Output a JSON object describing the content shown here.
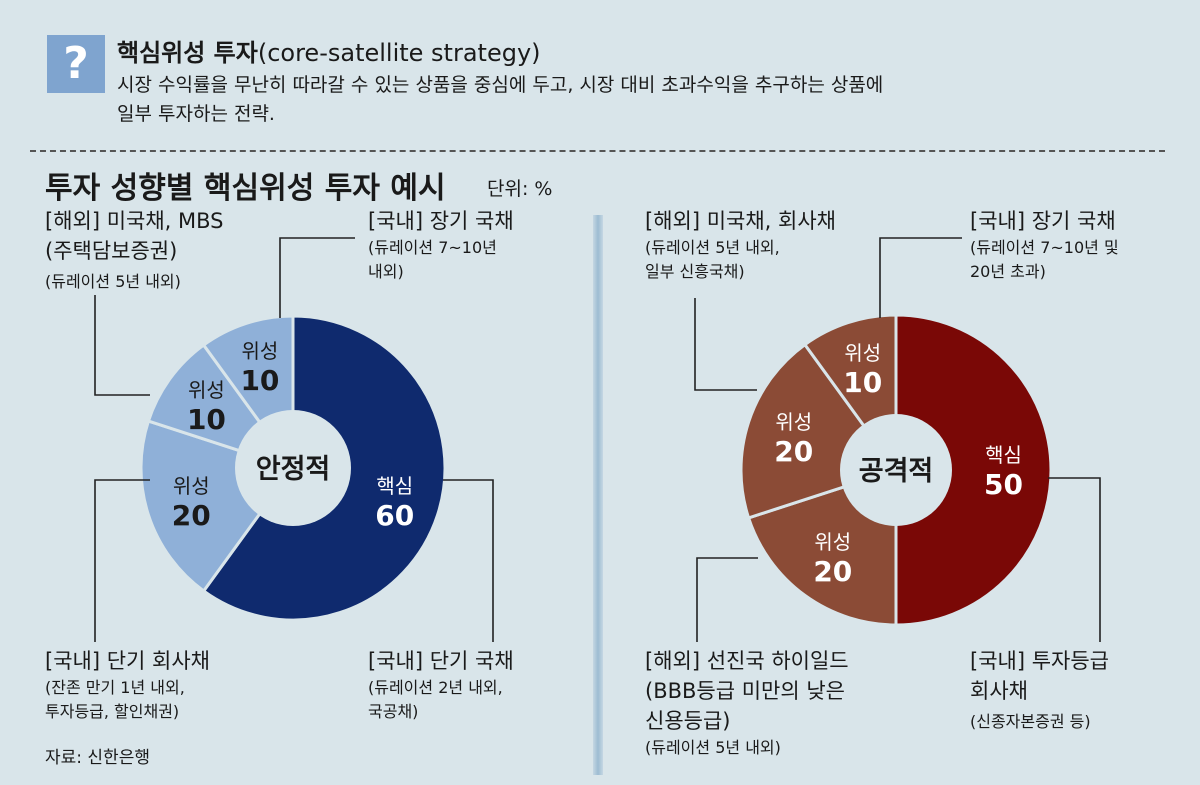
{
  "header": {
    "icon": "question-mark-icon",
    "title_ko": "핵심위성 투자",
    "title_en": "(core-satellite strategy)",
    "description": [
      "시장 수익률을 무난히 따라갈 수 있는 상품을 중심에 두고, 시장 대비 초과수익을 추구하는 상품에",
      "일부 투자하는 전략."
    ]
  },
  "main_title": "투자 성향별 핵심위성 투자 예시",
  "unit": "단위: %",
  "source": "자료: 신한은행",
  "colors": {
    "background": "#d9e5ea",
    "stable_core": "#0f2a6e",
    "stable_satellite": "#8fb0d8",
    "aggressive_core": "#7a0806",
    "aggressive_satellite": "#8b4b36"
  },
  "chart_data": [
    {
      "type": "pie",
      "donut": true,
      "center_label": "안정적",
      "slices": [
        {
          "label": "핵심",
          "value": 60,
          "description": [
            "[국내] 단기 국채",
            "(듀레이션 2년 내외,",
            "국공채)"
          ]
        },
        {
          "label": "위성",
          "value": 20,
          "description": [
            "[국내] 단기 회사채",
            "(잔존 만기 1년 내외,",
            "투자등급, 할인채권)"
          ]
        },
        {
          "label": "위성",
          "value": 10,
          "description": [
            "[해외] 미국채, MBS",
            "(주택담보증권)",
            "(듀레이션 5년 내외)"
          ]
        },
        {
          "label": "위성",
          "value": 10,
          "description": [
            "[국내] 장기 국채",
            "(듀레이션 7~10년",
            "내외)"
          ]
        }
      ]
    },
    {
      "type": "pie",
      "donut": true,
      "center_label": "공격적",
      "slices": [
        {
          "label": "핵심",
          "value": 50,
          "description": [
            "[국내] 투자등급",
            "회사채",
            "(신종자본증권 등)"
          ]
        },
        {
          "label": "위성",
          "value": 20,
          "description": [
            "[해외] 선진국 하이일드",
            "(BBB등급 미만의 낮은",
            "신용등급)",
            "(듀레이션 5년 내외)"
          ]
        },
        {
          "label": "위성",
          "value": 20,
          "description": [
            "[해외] 미국채, 회사채",
            "(듀레이션 5년 내외,",
            "일부 신흥국채)"
          ]
        },
        {
          "label": "위성",
          "value": 10,
          "description": [
            "[국내] 장기 국채",
            "(듀레이션 7~10년 및",
            "20년 초과)"
          ]
        }
      ]
    }
  ]
}
